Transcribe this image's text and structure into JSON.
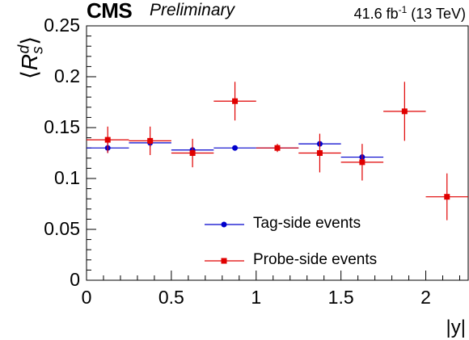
{
  "header": {
    "experiment": "CMS",
    "status": "Preliminary",
    "lumi_prefix": "41.6 fb",
    "lumi_exp": "-1",
    "lumi_suffix": " (13 TeV)"
  },
  "chart_data": {
    "type": "scatter",
    "xlabel": "|y|",
    "ylabel": "⟨R_s^d⟩",
    "xlim": [
      0,
      2.25
    ],
    "ylim": [
      0,
      0.25
    ],
    "x_ticks": [
      "0",
      "0.5",
      "1",
      "1.5",
      "2"
    ],
    "y_ticks": [
      "0",
      "0.05",
      "0.1",
      "0.15",
      "0.2",
      "0.25"
    ],
    "grid": false,
    "legend_position": "bottom-center",
    "series": [
      {
        "name": "Tag-side events",
        "color": "#0000cc",
        "marker": "circle",
        "points": [
          {
            "x": 0.125,
            "y": 0.13,
            "xerr": 0.125,
            "yerr": 0.005
          },
          {
            "x": 0.375,
            "y": 0.135,
            "xerr": 0.125,
            "yerr": 0.004
          },
          {
            "x": 0.625,
            "y": 0.128,
            "xerr": 0.125,
            "yerr": 0.003
          },
          {
            "x": 0.875,
            "y": 0.13,
            "xerr": 0.125,
            "yerr": 0.002
          },
          {
            "x": 1.125,
            "y": 0.13,
            "xerr": 0.125,
            "yerr": 0.002
          },
          {
            "x": 1.375,
            "y": 0.134,
            "xerr": 0.125,
            "yerr": 0.002
          },
          {
            "x": 1.625,
            "y": 0.121,
            "xerr": 0.125,
            "yerr": 0.002
          }
        ]
      },
      {
        "name": "Probe-side events",
        "color": "#e00000",
        "marker": "square",
        "points": [
          {
            "x": 0.125,
            "y": 0.138,
            "xerr": 0.125,
            "yerr": 0.013
          },
          {
            "x": 0.375,
            "y": 0.137,
            "xerr": 0.125,
            "yerr": 0.014
          },
          {
            "x": 0.625,
            "y": 0.125,
            "xerr": 0.125,
            "yerr": 0.014
          },
          {
            "x": 0.875,
            "y": 0.176,
            "xerr": 0.125,
            "yerr": 0.019
          },
          {
            "x": 1.125,
            "y": 0.13,
            "xerr": 0.125,
            "yerr": 0.004
          },
          {
            "x": 1.375,
            "y": 0.125,
            "xerr": 0.125,
            "yerr": 0.019
          },
          {
            "x": 1.625,
            "y": 0.116,
            "xerr": 0.125,
            "yerr": 0.018
          },
          {
            "x": 1.875,
            "y": 0.166,
            "xerr": 0.125,
            "yerr": 0.029
          },
          {
            "x": 2.125,
            "y": 0.082,
            "xerr": 0.125,
            "yerr": 0.023
          }
        ]
      }
    ]
  }
}
